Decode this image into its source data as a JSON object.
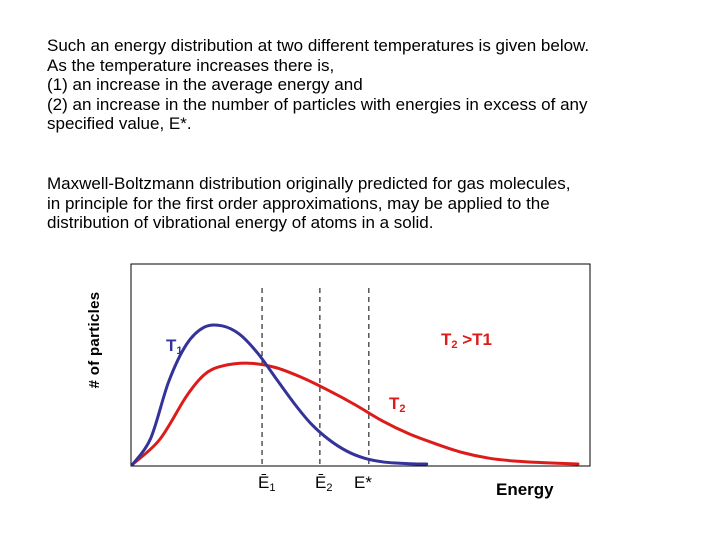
{
  "intro": {
    "lines": [
      "Such an energy distribution at two different temperatures is given below.",
      "As the temperature increases there is,",
      "(1) an increase in the average energy  and",
      "(2) an increase in the number of particles with energies in excess of any",
      "specified value, E*."
    ]
  },
  "note": {
    "lines": [
      "Maxwell‑Boltzmann  distribution originally predicted for gas molecules,",
      "in principle for the first order approximations, may be applied to the",
      "distribution of vibrational energy of atoms in a solid."
    ]
  },
  "chart_data": {
    "type": "line",
    "title": "",
    "xlabel": "Energy",
    "ylabel": "# of particles",
    "xlim": [
      0,
      100
    ],
    "ylim": [
      0,
      100
    ],
    "series": [
      {
        "name": "T1",
        "label": "T",
        "label_sub": "1",
        "color": "#333399",
        "x": [
          0,
          4,
          8,
          12,
          16,
          20,
          24,
          28,
          32,
          36,
          40,
          44,
          48,
          52,
          56,
          60,
          64,
          66
        ],
        "y": [
          0,
          18,
          57,
          83,
          95,
          96,
          90,
          77,
          60,
          43,
          28,
          17,
          9,
          4,
          1.5,
          0.5,
          0,
          0
        ]
      },
      {
        "name": "T2",
        "label": "T",
        "label_sub": "2",
        "color": "#dd1b1b",
        "x": [
          0,
          6,
          12,
          16,
          20,
          26,
          32,
          38,
          44,
          50,
          56,
          62,
          68,
          74,
          80,
          86,
          92,
          100
        ],
        "y": [
          0,
          17,
          47,
          62,
          68,
          70,
          67,
          60,
          51,
          41,
          30,
          21,
          14,
          8,
          4,
          2,
          1,
          0
        ]
      }
    ],
    "markers": [
      {
        "label": "Ē",
        "sub": "1",
        "x": 29
      },
      {
        "label": "Ē",
        "sub": "2",
        "x": 42
      },
      {
        "label": "E*",
        "sub": "",
        "x": 53
      }
    ],
    "annotation": {
      "main": "T",
      "sub": "2",
      "rest": " >T1"
    },
    "grid": false
  }
}
